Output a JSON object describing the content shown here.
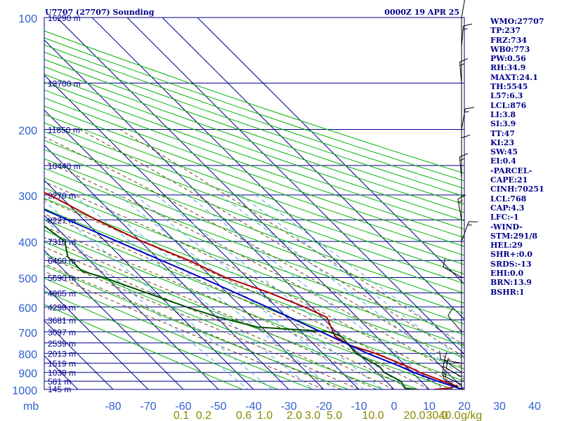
{
  "header": {
    "station_title": "U7707 (27707) Sounding",
    "valid_time": "0000Z 19 APR 25"
  },
  "chart_data": {
    "type": "line",
    "subtype": "skew-t log-p",
    "pressure_axis": {
      "unit_label": "mb",
      "levels": [
        100,
        200,
        300,
        400,
        500,
        600,
        700,
        800,
        900,
        1000
      ],
      "range": [
        100,
        1000
      ],
      "scale": "log"
    },
    "temperature_axis": {
      "ticks": [
        -80,
        -70,
        -60,
        -50,
        -40,
        -30,
        -20,
        -10,
        0,
        10,
        20,
        30,
        40
      ],
      "skewed": true
    },
    "mixing_ratio_axis": {
      "unit_label": "g/kg",
      "labels": [
        "0.1",
        "0.2",
        "0.6",
        "1.0",
        "2.0",
        "3.0",
        "5.0",
        "10.0",
        "20.0",
        "30.0",
        "40.0"
      ]
    },
    "height_labels": [
      {
        "p": 100,
        "text": "16290 m"
      },
      {
        "p": 150,
        "text": "13700 m"
      },
      {
        "p": 200,
        "text": "11850 m"
      },
      {
        "p": 250,
        "text": "10440 m"
      },
      {
        "p": 300,
        "text": "9270 m"
      },
      {
        "p": 350,
        "text": "8227 m"
      },
      {
        "p": 400,
        "text": "7310 m"
      },
      {
        "p": 450,
        "text": "6460 m"
      },
      {
        "p": 500,
        "text": "5690 m"
      },
      {
        "p": 550,
        "text": "4965 m"
      },
      {
        "p": 600,
        "text": "4298 m"
      },
      {
        "p": 650,
        "text": "3681 m"
      },
      {
        "p": 700,
        "text": "3097 m"
      },
      {
        "p": 750,
        "text": "2539 m"
      },
      {
        "p": 800,
        "text": "2013 m"
      },
      {
        "p": 850,
        "text": "1519 m"
      },
      {
        "p": 900,
        "text": "1039 m"
      },
      {
        "p": 950,
        "text": "581 m"
      },
      {
        "p": 1000,
        "text": "145 m"
      }
    ],
    "series": [
      {
        "role": "temperature",
        "color": "#b00000",
        "points": [
          [
            1000,
            11.5
          ],
          [
            992,
            16.1
          ],
          [
            980,
            18.6
          ],
          [
            950,
            16.3
          ],
          [
            900,
            12.1
          ],
          [
            870,
            10.6
          ],
          [
            800,
            4.9
          ],
          [
            760,
            -0.1
          ],
          [
            720,
            -1.7
          ],
          [
            680,
            -0.2
          ],
          [
            640,
            1.4
          ],
          [
            600,
            -2.1
          ],
          [
            550,
            -7.9
          ],
          [
            500,
            -16.1
          ],
          [
            450,
            -21.6
          ],
          [
            400,
            -29.5
          ],
          [
            350,
            -36.4
          ],
          [
            300,
            -42.6
          ],
          [
            250,
            -53.7
          ],
          [
            225,
            -59.9
          ],
          [
            210,
            -59.6
          ],
          [
            200,
            -56.7
          ],
          [
            175,
            -53.4
          ],
          [
            160,
            -52.9
          ],
          [
            150,
            -56.3
          ],
          [
            130,
            -59.6
          ],
          [
            100,
            -71.6
          ]
        ]
      },
      {
        "role": "dewpoint",
        "color": "#005000",
        "points": [
          [
            1000,
            6.5
          ],
          [
            992,
            3.4
          ],
          [
            950,
            4.3
          ],
          [
            900,
            2.0
          ],
          [
            870,
            2.4
          ],
          [
            800,
            -0.6
          ],
          [
            720,
            0.1
          ],
          [
            700,
            -2.1
          ],
          [
            680,
            -21.1
          ],
          [
            640,
            -29.3
          ],
          [
            600,
            -35.6
          ],
          [
            550,
            -42.9
          ],
          [
            500,
            -50.8
          ],
          [
            480,
            -55.2
          ],
          [
            440,
            -55.1
          ],
          [
            400,
            -51.6
          ],
          [
            350,
            -53.6
          ],
          [
            300,
            -59.4
          ],
          [
            250,
            -71.5
          ],
          [
            220,
            -77.2
          ],
          [
            200,
            -75.0
          ],
          [
            175,
            -71.6
          ],
          [
            150,
            -64.5
          ],
          [
            130,
            -73.9
          ],
          [
            100,
            -90.8
          ]
        ]
      },
      {
        "role": "parcel",
        "color": "#0000c0",
        "points": [
          [
            1000,
            19.5
          ],
          [
            950,
            14.7
          ],
          [
            900,
            10.4
          ],
          [
            860,
            7.8
          ],
          [
            800,
            2.7
          ],
          [
            700,
            -4.4
          ],
          [
            600,
            -12.7
          ],
          [
            500,
            -23.0
          ],
          [
            400,
            -36.6
          ],
          [
            300,
            -53.8
          ],
          [
            250,
            -63.8
          ],
          [
            200,
            -74.4
          ]
        ]
      }
    ],
    "wind_barbs": [
      {
        "p": 1000,
        "dir": 300,
        "kt": 10
      },
      {
        "p": 970,
        "dir": 295,
        "kt": 15
      },
      {
        "p": 925,
        "dir": 300,
        "kt": 20
      },
      {
        "p": 900,
        "dir": 305,
        "kt": 15
      },
      {
        "p": 850,
        "dir": 280,
        "kt": 10
      },
      {
        "p": 700,
        "dir": 320,
        "kt": 10
      },
      {
        "p": 500,
        "dir": 300,
        "kt": 10
      },
      {
        "p": 400,
        "dir": 20,
        "kt": 15
      },
      {
        "p": 350,
        "dir": 350,
        "kt": 15
      },
      {
        "p": 270,
        "dir": 355,
        "kt": 15
      },
      {
        "p": 240,
        "dir": 0,
        "kt": 10
      },
      {
        "p": 200,
        "dir": 10,
        "kt": 15
      },
      {
        "p": 150,
        "dir": 355,
        "kt": 15
      },
      {
        "p": 120,
        "dir": 5,
        "kt": 15
      },
      {
        "p": 100,
        "dir": 10,
        "kt": 10
      }
    ],
    "grid": true
  },
  "indices": [
    "WMO:27707",
    "TP:237",
    "FRZ:734",
    "WB0:773",
    "PW:0.56",
    "RH:34.9",
    "MAXT:24.1",
    "TH:5545",
    "L57:6.3",
    "LCL:876",
    "LI:3.8",
    "SI:3.9",
    "TT:47",
    "KI:23",
    "SW:45",
    "EI:0.4",
    "-PARCEL-",
    "CAPE:21",
    "CINH:70251",
    "LCL:768",
    "CAP:4.3",
    "LFC:-1",
    "-WIND-",
    "STM:291/8",
    "HEL:29",
    "SHR+:0.0",
    "SRDS:-13",
    "EHI:0.0",
    "BRN:13.9",
    "BSHR:1"
  ],
  "colors": {
    "isobar_grid": "#00008b",
    "dry_adiabat": "#00b400",
    "moist_adiabat": "#6e4611",
    "mixing_ratio": "#4aa3df",
    "axis_labels": "#3060d0",
    "height_labels": "#00008b",
    "mixing_ratio_labels": "#8a8a00",
    "wind_barbs": "#000000"
  }
}
